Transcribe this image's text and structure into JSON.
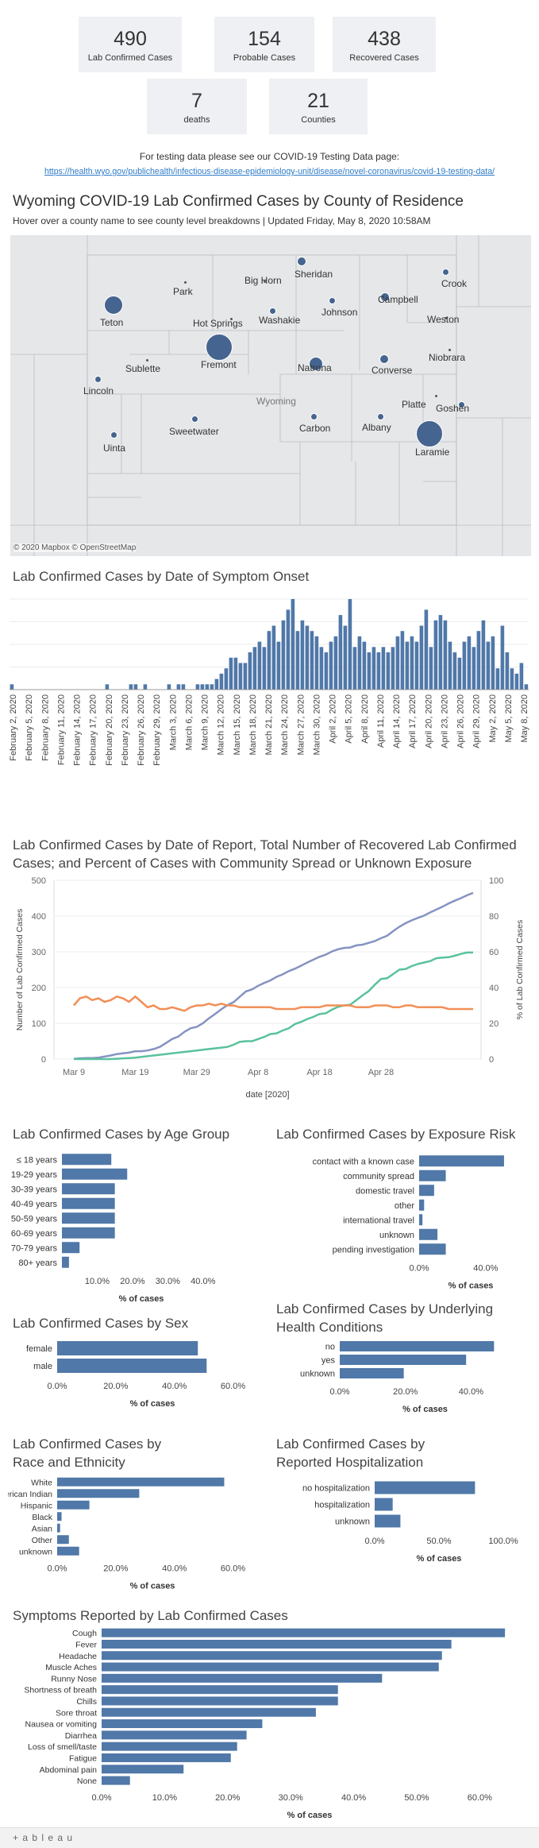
{
  "kpis": [
    {
      "value": "490",
      "label": "Lab Confirmed Cases"
    },
    {
      "value": "154",
      "label": "Probable Cases"
    },
    {
      "value": "438",
      "label": "Recovered Cases"
    },
    {
      "value": "7",
      "label": "deaths"
    },
    {
      "value": "21",
      "label": "Counties"
    }
  ],
  "testing_note": "For testing data please see our COVID-19 Testing Data page:",
  "testing_link": "https://health.wyo.gov/publichealth/infectious-disease-epidemiology-unit/disease/novel-coronavirus/covid-19-testing-data/",
  "map": {
    "title": "Wyoming COVID-19 Lab Confirmed Cases by County of Residence",
    "subtitle": "Hover over a county name to see county level breakdowns | Updated Friday, May 8, 2020 10:58AM",
    "attribution": "© 2020 Mapbox © OpenStreetMap",
    "state_label": "Wyoming",
    "counties": [
      {
        "name": "Sheridan",
        "size": "sm"
      },
      {
        "name": "Crook",
        "size": "xs"
      },
      {
        "name": "Big Horn",
        "size": "dot"
      },
      {
        "name": "Park",
        "size": "dot"
      },
      {
        "name": "Campbell",
        "size": "sm"
      },
      {
        "name": "Teton",
        "size": "lg"
      },
      {
        "name": "Johnson",
        "size": "xs"
      },
      {
        "name": "Washakie",
        "size": "xs"
      },
      {
        "name": "Hot Springs",
        "size": "dot"
      },
      {
        "name": "Weston",
        "size": "dot"
      },
      {
        "name": "Fremont",
        "size": "xl"
      },
      {
        "name": "Natrona",
        "size": "md"
      },
      {
        "name": "Converse",
        "size": "sm"
      },
      {
        "name": "Niobrara",
        "size": "dot"
      },
      {
        "name": "Sublette",
        "size": "dot"
      },
      {
        "name": "Lincoln",
        "size": "xs"
      },
      {
        "name": "Platte",
        "size": "dot"
      },
      {
        "name": "Goshen",
        "size": "xs"
      },
      {
        "name": "Sweetwater",
        "size": "xs"
      },
      {
        "name": "Carbon",
        "size": "xs"
      },
      {
        "name": "Albany",
        "size": "xs"
      },
      {
        "name": "Laramie",
        "size": "xl"
      },
      {
        "name": "Uinta",
        "size": "xs"
      }
    ]
  },
  "chart_data": [
    {
      "type": "bar",
      "title": "Lab Confirmed Cases by Date of Symptom Onset",
      "tick_labels": [
        "February 2, 2020",
        "February 5, 2020",
        "February 8, 2020",
        "February 11, 2020",
        "February 14, 2020",
        "February 17, 2020",
        "February 20, 2020",
        "February 23, 2020",
        "February 26, 2020",
        "February 29, 2020",
        "March 3, 2020",
        "March 6, 2020",
        "March 9, 2020",
        "March 12, 2020",
        "March 15, 2020",
        "March 18, 2020",
        "March 21, 2020",
        "March 24, 2020",
        "March 27, 2020",
        "March 30, 2020",
        "April 2, 2020",
        "April 5, 2020",
        "April 8, 2020",
        "April 11, 2020",
        "April 14, 2020",
        "April 17, 2020",
        "April 20, 2020",
        "April 23, 2020",
        "April 26, 2020",
        "April 29, 2020",
        "May 2, 2020",
        "May 5, 2020",
        "May 8, 2020"
      ],
      "values": [
        1,
        0,
        0,
        0,
        0,
        0,
        0,
        0,
        0,
        0,
        0,
        0,
        0,
        0,
        0,
        0,
        0,
        0,
        0,
        0,
        1,
        0,
        0,
        0,
        0,
        1,
        1,
        0,
        1,
        0,
        0,
        0,
        0,
        1,
        0,
        1,
        1,
        0,
        0,
        1,
        1,
        1,
        1,
        2,
        3,
        4,
        6,
        6,
        5,
        5,
        7,
        8,
        9,
        8,
        11,
        12,
        9,
        13,
        15,
        17,
        11,
        13,
        12,
        11,
        10,
        8,
        7,
        9,
        10,
        14,
        12,
        17,
        8,
        10,
        9,
        7,
        8,
        7,
        8,
        7,
        8,
        10,
        11,
        9,
        10,
        9,
        12,
        15,
        8,
        13,
        14,
        13,
        9,
        7,
        6,
        9,
        10,
        8,
        11,
        13,
        9,
        10,
        4,
        12,
        7,
        4,
        3,
        5,
        1
      ]
    },
    {
      "type": "line",
      "title": "Lab Confirmed Cases by Date of Report, Total Number of Recovered Lab Confirmed Cases; and Percent of Cases with Community Spread or Unknown Exposure",
      "xlabel": "date [2020]",
      "ylabel": "Number of Lab Confirmed Cases",
      "y2label": "% of Lab Confirmed Cases",
      "x_ticks": [
        "Mar 9",
        "Mar 19",
        "Mar 29",
        "Apr 8",
        "Apr 18",
        "Apr 28"
      ],
      "ylim": [
        0,
        500
      ],
      "y_ticks": [
        0,
        100,
        200,
        300,
        400,
        500
      ],
      "y2lim": [
        0,
        100
      ],
      "y2_ticks": [
        0,
        20,
        40,
        60,
        80,
        100
      ],
      "series": [
        {
          "color": "#8593c2",
          "values": [
            1,
            2,
            3,
            3,
            4,
            7,
            10,
            14,
            16,
            18,
            22,
            22,
            24,
            28,
            34,
            45,
            56,
            63,
            76,
            86,
            90,
            100,
            114,
            126,
            139,
            151,
            159,
            174,
            189,
            195,
            205,
            213,
            220,
            230,
            237,
            246,
            253,
            261,
            270,
            278,
            286,
            292,
            301,
            307,
            311,
            312,
            318,
            320,
            325,
            330,
            338,
            345,
            358,
            370,
            380,
            388,
            395,
            401,
            410,
            418,
            426,
            435,
            443,
            450,
            458,
            465
          ]
        },
        {
          "color": "#59c29b",
          "values": [
            0,
            0,
            0,
            0,
            0,
            0,
            0,
            1,
            2,
            3,
            4,
            6,
            8,
            10,
            12,
            14,
            16,
            18,
            20,
            22,
            24,
            26,
            28,
            30,
            32,
            34,
            40,
            48,
            50,
            50,
            56,
            62,
            70,
            72,
            80,
            86,
            98,
            104,
            112,
            118,
            126,
            128,
            138,
            146,
            150,
            152,
            165,
            178,
            190,
            208,
            224,
            226,
            238,
            250,
            252,
            260,
            266,
            270,
            274,
            282,
            284,
            285,
            289,
            294,
            298,
            298
          ]
        },
        {
          "color": "#f28f57",
          "axis": "right",
          "values": [
            30,
            34,
            35,
            33,
            34,
            32,
            33,
            35,
            34,
            32,
            35,
            32,
            29,
            30,
            28,
            28,
            29,
            28,
            27,
            29,
            30,
            30,
            31,
            30,
            31,
            30,
            30,
            29,
            29,
            29,
            29,
            29,
            29,
            28,
            28,
            28,
            28,
            29,
            29,
            29,
            29,
            30,
            30,
            30,
            30,
            30,
            29,
            29,
            29,
            30,
            30,
            30,
            29,
            29,
            30,
            30,
            29,
            29,
            29,
            29,
            29,
            28,
            28,
            28,
            28,
            28
          ]
        }
      ]
    },
    {
      "type": "bar",
      "orientation": "horizontal",
      "title": "Lab Confirmed Cases by Age Group",
      "xlabel": "% of cases",
      "x_ticks": [
        "10.0%",
        "20.0%",
        "30.0%",
        "40.0%"
      ],
      "xlim": [
        0,
        45
      ],
      "categories": [
        "≤ 18 years",
        "19-29 years",
        "30-39 years",
        "40-49 years",
        "50-59 years",
        "60-69 years",
        "70-79 years",
        "80+ years"
      ],
      "values": [
        14,
        18.5,
        15,
        15,
        15,
        15,
        5,
        2
      ]
    },
    {
      "type": "bar",
      "orientation": "horizontal",
      "title": "Lab Confirmed Cases by Exposure Risk",
      "xlabel": "% of cases",
      "x_ticks": [
        "0.0%",
        "40.0%"
      ],
      "xlim": [
        0,
        62
      ],
      "categories": [
        "contact with a known case",
        "community spread",
        "domestic travel",
        "other",
        "international travel",
        "unknown",
        "pending investigation"
      ],
      "values": [
        51,
        16,
        9,
        3,
        2,
        11,
        16
      ]
    },
    {
      "type": "bar",
      "orientation": "horizontal",
      "title": "Lab Confirmed Cases by Sex",
      "xlabel": "% of cases",
      "x_ticks": [
        "0.0%",
        "20.0%",
        "40.0%",
        "60.0%"
      ],
      "xlim": [
        0,
        65
      ],
      "categories": [
        "female",
        "male"
      ],
      "values": [
        48,
        51
      ]
    },
    {
      "type": "bar",
      "orientation": "horizontal",
      "title": "Lab Confirmed Cases by Underlying Health Conditions",
      "xlabel": "% of cases",
      "x_ticks": [
        "0.0%",
        "20.0%",
        "40.0%"
      ],
      "xlim": [
        0,
        52
      ],
      "categories": [
        "no",
        "yes",
        "unknown"
      ],
      "values": [
        47,
        38.5,
        19.5
      ]
    },
    {
      "type": "bar",
      "orientation": "horizontal",
      "title": "Lab Confirmed Cases by Race and Ethnicity",
      "xlabel": "% of cases",
      "x_ticks": [
        "0.0%",
        "20.0%",
        "40.0%",
        "60.0%"
      ],
      "xlim": [
        0,
        65
      ],
      "categories": [
        "White",
        "American Indian",
        "Hispanic",
        "Black",
        "Asian",
        "Other",
        "unknown"
      ],
      "values": [
        57,
        28,
        11,
        1.5,
        1,
        4,
        7.5
      ]
    },
    {
      "type": "bar",
      "orientation": "horizontal",
      "title": "Lab Confirmed Cases by Reported Hospitalization",
      "xlabel": "% of cases",
      "x_ticks": [
        "0.0%",
        "50.0%",
        "100.0%"
      ],
      "xlim": [
        0,
        100
      ],
      "categories": [
        "no hospitalization",
        "hospitalization",
        "unknown"
      ],
      "values": [
        78,
        14,
        20
      ]
    },
    {
      "type": "bar",
      "orientation": "horizontal",
      "title": "Symptoms Reported by Lab Confirmed Cases",
      "xlabel": "% of cases",
      "x_ticks": [
        "0.0%",
        "10.0%",
        "20.0%",
        "30.0%",
        "40.0%",
        "50.0%",
        "60.0%"
      ],
      "xlim": [
        0,
        66
      ],
      "categories": [
        "Cough",
        "Fever",
        "Headache",
        "Muscle Aches",
        "Runny Nose",
        "Shortness of breath",
        "Chills",
        "Sore throat",
        "Nausea or vomiting",
        "Diarrhea",
        "Loss of smell/taste",
        "Fatigue",
        "Abdominal pain",
        "None"
      ],
      "values": [
        64,
        55.5,
        54,
        53.5,
        44.5,
        37.5,
        37.5,
        34,
        25.5,
        23,
        21.5,
        20.5,
        13,
        4.5
      ]
    }
  ],
  "footer": {
    "logo": "+ a b l e a u"
  },
  "colors": {
    "bar": "#5078a8",
    "bubble": "#45648f",
    "kpi_bg": "#eef0f3"
  }
}
